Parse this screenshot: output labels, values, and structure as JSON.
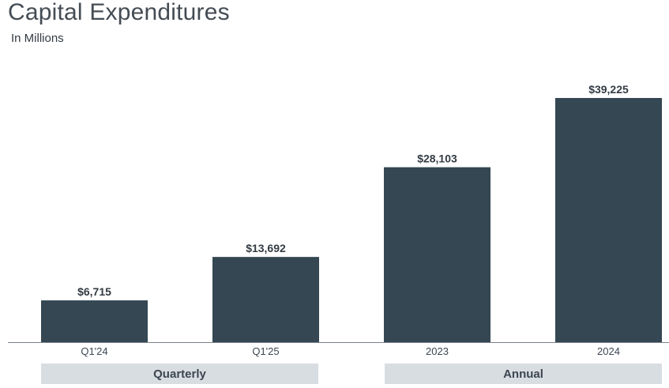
{
  "chart_data": {
    "type": "bar",
    "title": "Capital Expenditures",
    "subtitle": "In Millions",
    "categories": [
      "Q1'24",
      "Q1'25",
      "2023",
      "2024"
    ],
    "values": [
      6715,
      13692,
      28103,
      39225
    ],
    "value_labels": [
      "$6,715",
      "$13,692",
      "$28,103",
      "$39,225"
    ],
    "groups": [
      {
        "label": "Quarterly",
        "categories": [
          "Q1'24",
          "Q1'25"
        ]
      },
      {
        "label": "Annual",
        "categories": [
          "2023",
          "2024"
        ]
      }
    ],
    "ylim": [
      0,
      41000
    ],
    "grid": false,
    "bar_color": "#344753"
  }
}
